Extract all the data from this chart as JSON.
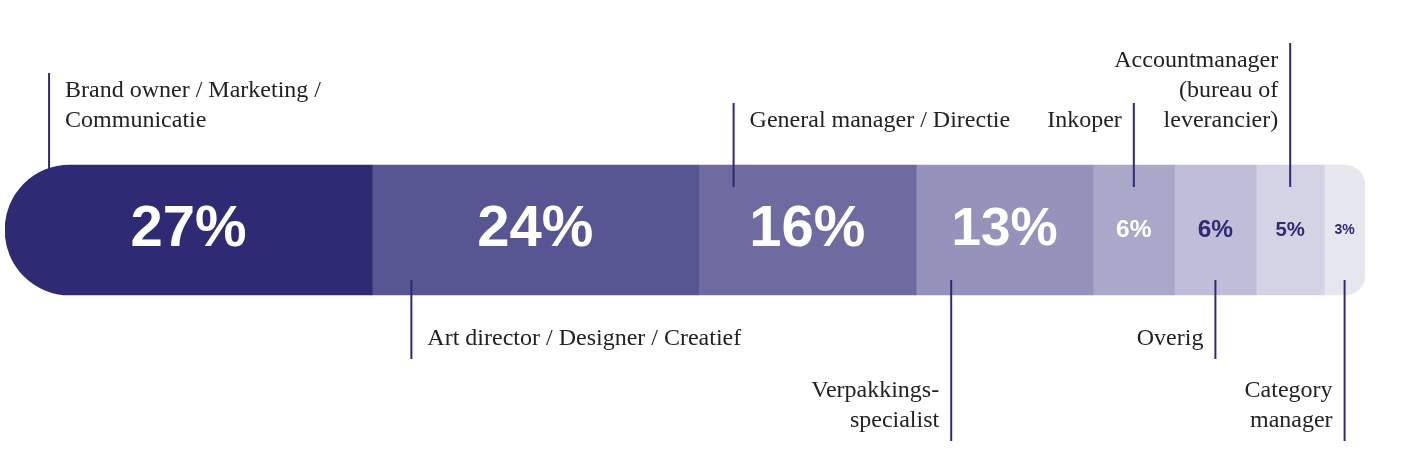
{
  "chart_data": {
    "type": "bar",
    "orientation": "horizontal",
    "stacked": true,
    "tick_labels": false,
    "categories": [
      null
    ],
    "series": [
      {
        "name": "Brand owner / Marketing / Communicatie",
        "color": "#2e2a73",
        "values": [
          27
        ],
        "value_labels": [
          "27%"
        ]
      },
      {
        "name": "Art director / Designer / Creatief",
        "color": "#575592",
        "values": [
          24
        ],
        "value_labels": [
          "24%"
        ]
      },
      {
        "name": "General manager / Directie",
        "color": "#6e6ba0",
        "values": [
          16
        ],
        "value_labels": [
          "16%"
        ]
      },
      {
        "name": "Verpakkings-specialist",
        "color": "#9593bc",
        "values": [
          13
        ],
        "value_labels": [
          "13%"
        ]
      },
      {
        "name": "Inkoper",
        "color": "#a9a8c9",
        "values": [
          6
        ],
        "value_labels": [
          "6%"
        ]
      },
      {
        "name": "Overig",
        "color": "#bfbdd8",
        "values": [
          6
        ],
        "value_labels": [
          "6%"
        ]
      },
      {
        "name": "Accountmanager (bureau of leverancier)",
        "color": "#d4d3e5",
        "values": [
          5
        ],
        "value_labels": [
          "5%"
        ]
      },
      {
        "name": "Category manager",
        "color": "#e6e6ef",
        "values": [
          3
        ],
        "value_labels": [
          "3%"
        ]
      }
    ]
  }
}
